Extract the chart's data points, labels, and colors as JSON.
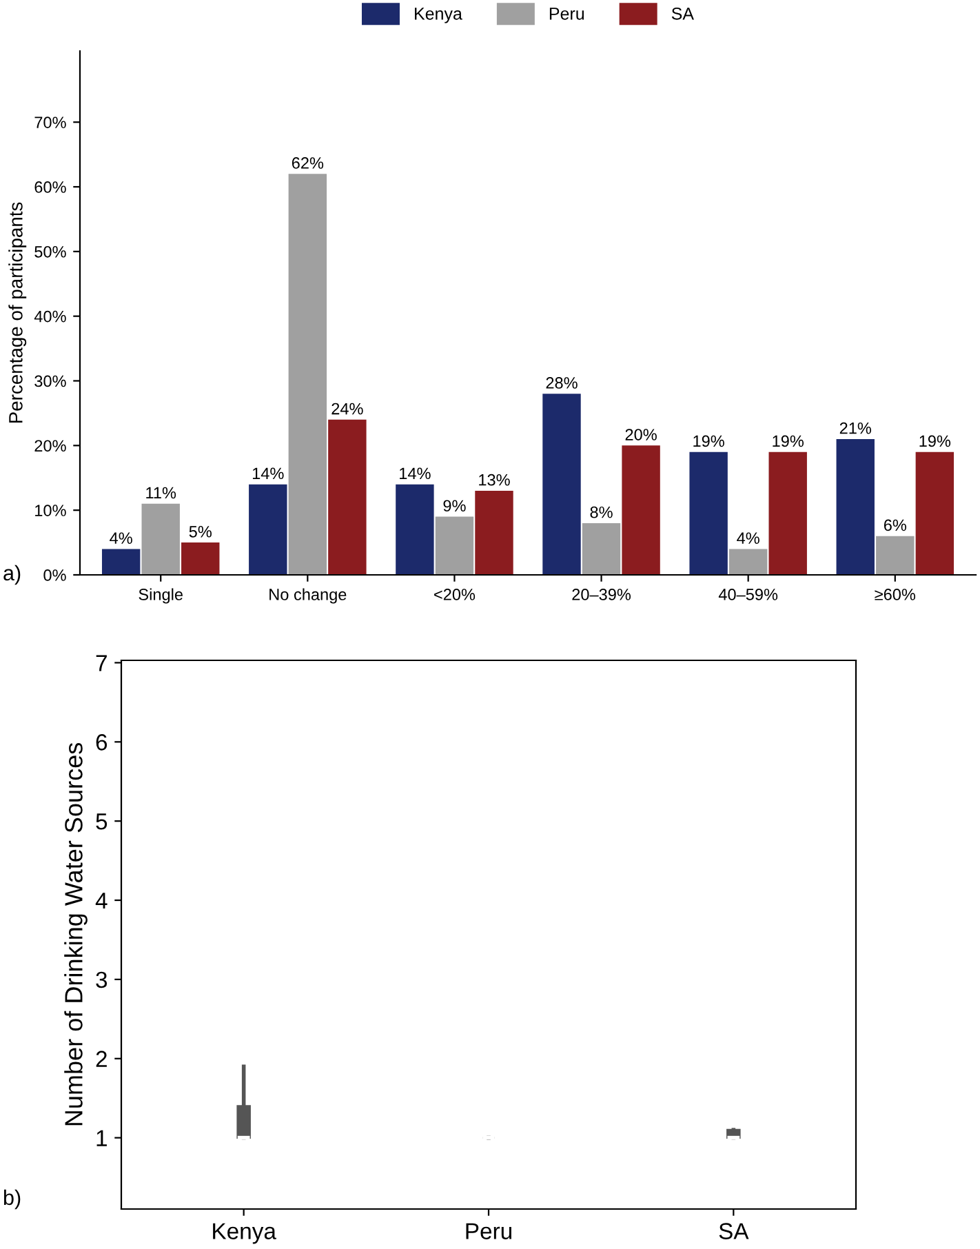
{
  "chart_data": [
    {
      "type": "bar",
      "ylabel": "Percentage of participants",
      "annotations": [
        "a)"
      ],
      "categories": [
        "Single",
        "No change",
        "<20%",
        "20–39%",
        "40–59%",
        "≥60%"
      ],
      "series": [
        {
          "name": "Kenya",
          "color": "#1c2a6b",
          "values": [
            4,
            14,
            14,
            28,
            19,
            21
          ],
          "value_labels": [
            "4%",
            "14%",
            "14%",
            "28%",
            "19%",
            "21%"
          ]
        },
        {
          "name": "Peru",
          "color": "#a0a0a0",
          "values": [
            11,
            62,
            9,
            8,
            4,
            6
          ],
          "value_labels": [
            "11%",
            "62%",
            "9%",
            "8%",
            "4%",
            "6%"
          ]
        },
        {
          "name": "SA",
          "color": "#8b1c1f",
          "values": [
            5,
            24,
            13,
            20,
            19,
            19
          ],
          "value_labels": [
            "5%",
            "24%",
            "13%",
            "20%",
            "19%",
            "19%"
          ]
        }
      ],
      "ylim": [
        0,
        81
      ],
      "yticks": [
        {
          "value": 0,
          "label": "0%"
        },
        {
          "value": 10,
          "label": "10%"
        },
        {
          "value": 20,
          "label": "20%"
        },
        {
          "value": 30,
          "label": "30%"
        },
        {
          "value": 40,
          "label": "40%"
        },
        {
          "value": 50,
          "label": "50%"
        },
        {
          "value": 60,
          "label": "60%"
        },
        {
          "value": 70,
          "label": "70%"
        }
      ],
      "legend": "top",
      "grid": false
    },
    {
      "type": "box",
      "ylabel": "Number of Drinking Water Sources",
      "annotations": [
        "b)"
      ],
      "categories": [
        "Kenya",
        "Peru",
        "SA"
      ],
      "boxes": [
        {
          "low": 1,
          "q1": 1,
          "median": 1,
          "q3": 1.4,
          "high": 1.9
        },
        {
          "low": 1,
          "q1": 1,
          "median": 1,
          "q3": 1,
          "high": 1
        },
        {
          "low": 1,
          "q1": 1,
          "median": 1,
          "q3": 1.1,
          "high": 1.1
        }
      ],
      "color": "#555555",
      "ylim": [
        0.1,
        7.03
      ],
      "yticks": [
        1,
        2,
        3,
        4,
        5,
        6,
        7
      ],
      "grid": false
    }
  ]
}
